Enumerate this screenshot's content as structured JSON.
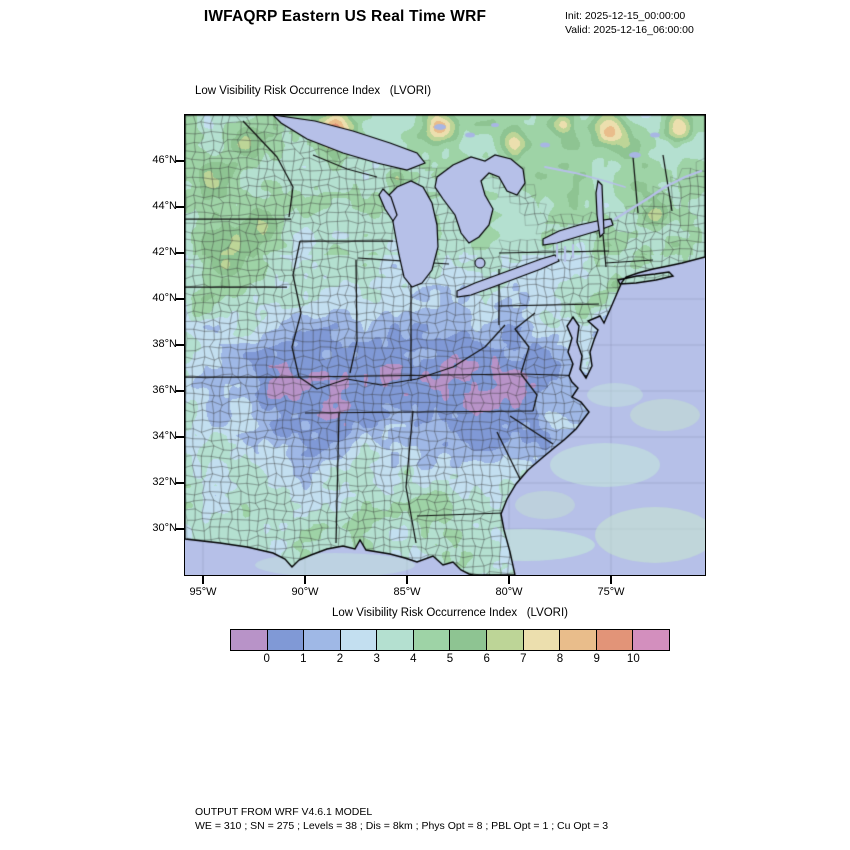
{
  "header": {
    "title": "IWFAQRP Eastern US Real Time WRF",
    "init": "Init: 2025-12-15_00:00:00",
    "valid": "Valid: 2025-12-16_06:00:00"
  },
  "chart_data": {
    "type": "heatmap",
    "title": "Low Visibility Risk Occurrence Index   (LVORI)",
    "region": "Eastern US",
    "x_ticks": [
      "95°W",
      "90°W",
      "85°W",
      "80°W",
      "75°W"
    ],
    "y_ticks": [
      "46°N",
      "44°N",
      "42°N",
      "40°N",
      "38°N",
      "36°N",
      "34°N",
      "32°N",
      "30°N"
    ],
    "colorbar": {
      "title": "Low Visibility Risk Occurrence Index   (LVORI)",
      "tick_labels": [
        "0",
        "1",
        "2",
        "3",
        "4",
        "5",
        "6",
        "7",
        "8",
        "9",
        "10"
      ],
      "colors": [
        "#b893c8",
        "#8099d6",
        "#9fb8e6",
        "#c3dff0",
        "#b4e0d0",
        "#9ed3a6",
        "#8ec492",
        "#bdd597",
        "#ecdfae",
        "#e9bd8b",
        "#e29478",
        "#d38fbe"
      ]
    },
    "map": {
      "ocean_color": "#b6c0e8",
      "land_field_summary": "LVORI 1-2 (blue) over the Ohio Valley and mid-South; 3-6 (cyan-green) across the north and Gulf South; isolated 7-10 hotspots (orange/pink) over Canada, Iowa, lower Michigan and the urban Northeast"
    }
  },
  "footer": {
    "line1": "OUTPUT FROM WRF V4.6.1 MODEL",
    "line2": "WE = 310 ; SN = 275 ; Levels = 38 ; Dis = 8km ; Phys Opt = 8 ; PBL Opt = 1 ; Cu Opt = 3"
  }
}
